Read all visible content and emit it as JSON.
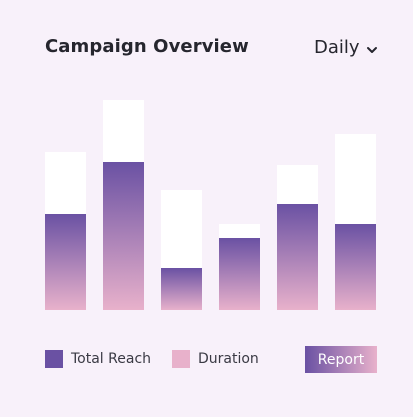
{
  "header": {
    "title": "Campaign Overview",
    "period": "Daily"
  },
  "chart_data": {
    "type": "bar",
    "categories": [
      "",
      "",
      "",
      "",
      "",
      ""
    ],
    "series": [
      {
        "name": "Total Reach",
        "values": [
          96,
          148,
          42,
          72,
          106,
          86
        ],
        "color": "#6a51a3"
      },
      {
        "name": "Duration",
        "values": [
          158,
          210,
          120,
          86,
          145,
          176
        ],
        "color": "#e8b1cb"
      }
    ],
    "ylim": [
      0,
      220
    ],
    "grid": false,
    "legend": "bottom-left"
  },
  "legend": {
    "items": [
      {
        "label": "Total Reach",
        "color": "#6a51a3"
      },
      {
        "label": "Duration",
        "color": "#e8b1cb"
      }
    ]
  },
  "actions": {
    "report_label": "Report"
  },
  "colors": {
    "background": "#f8f1fa",
    "purple": "#6a51a3",
    "pink": "#e8b1cb"
  }
}
